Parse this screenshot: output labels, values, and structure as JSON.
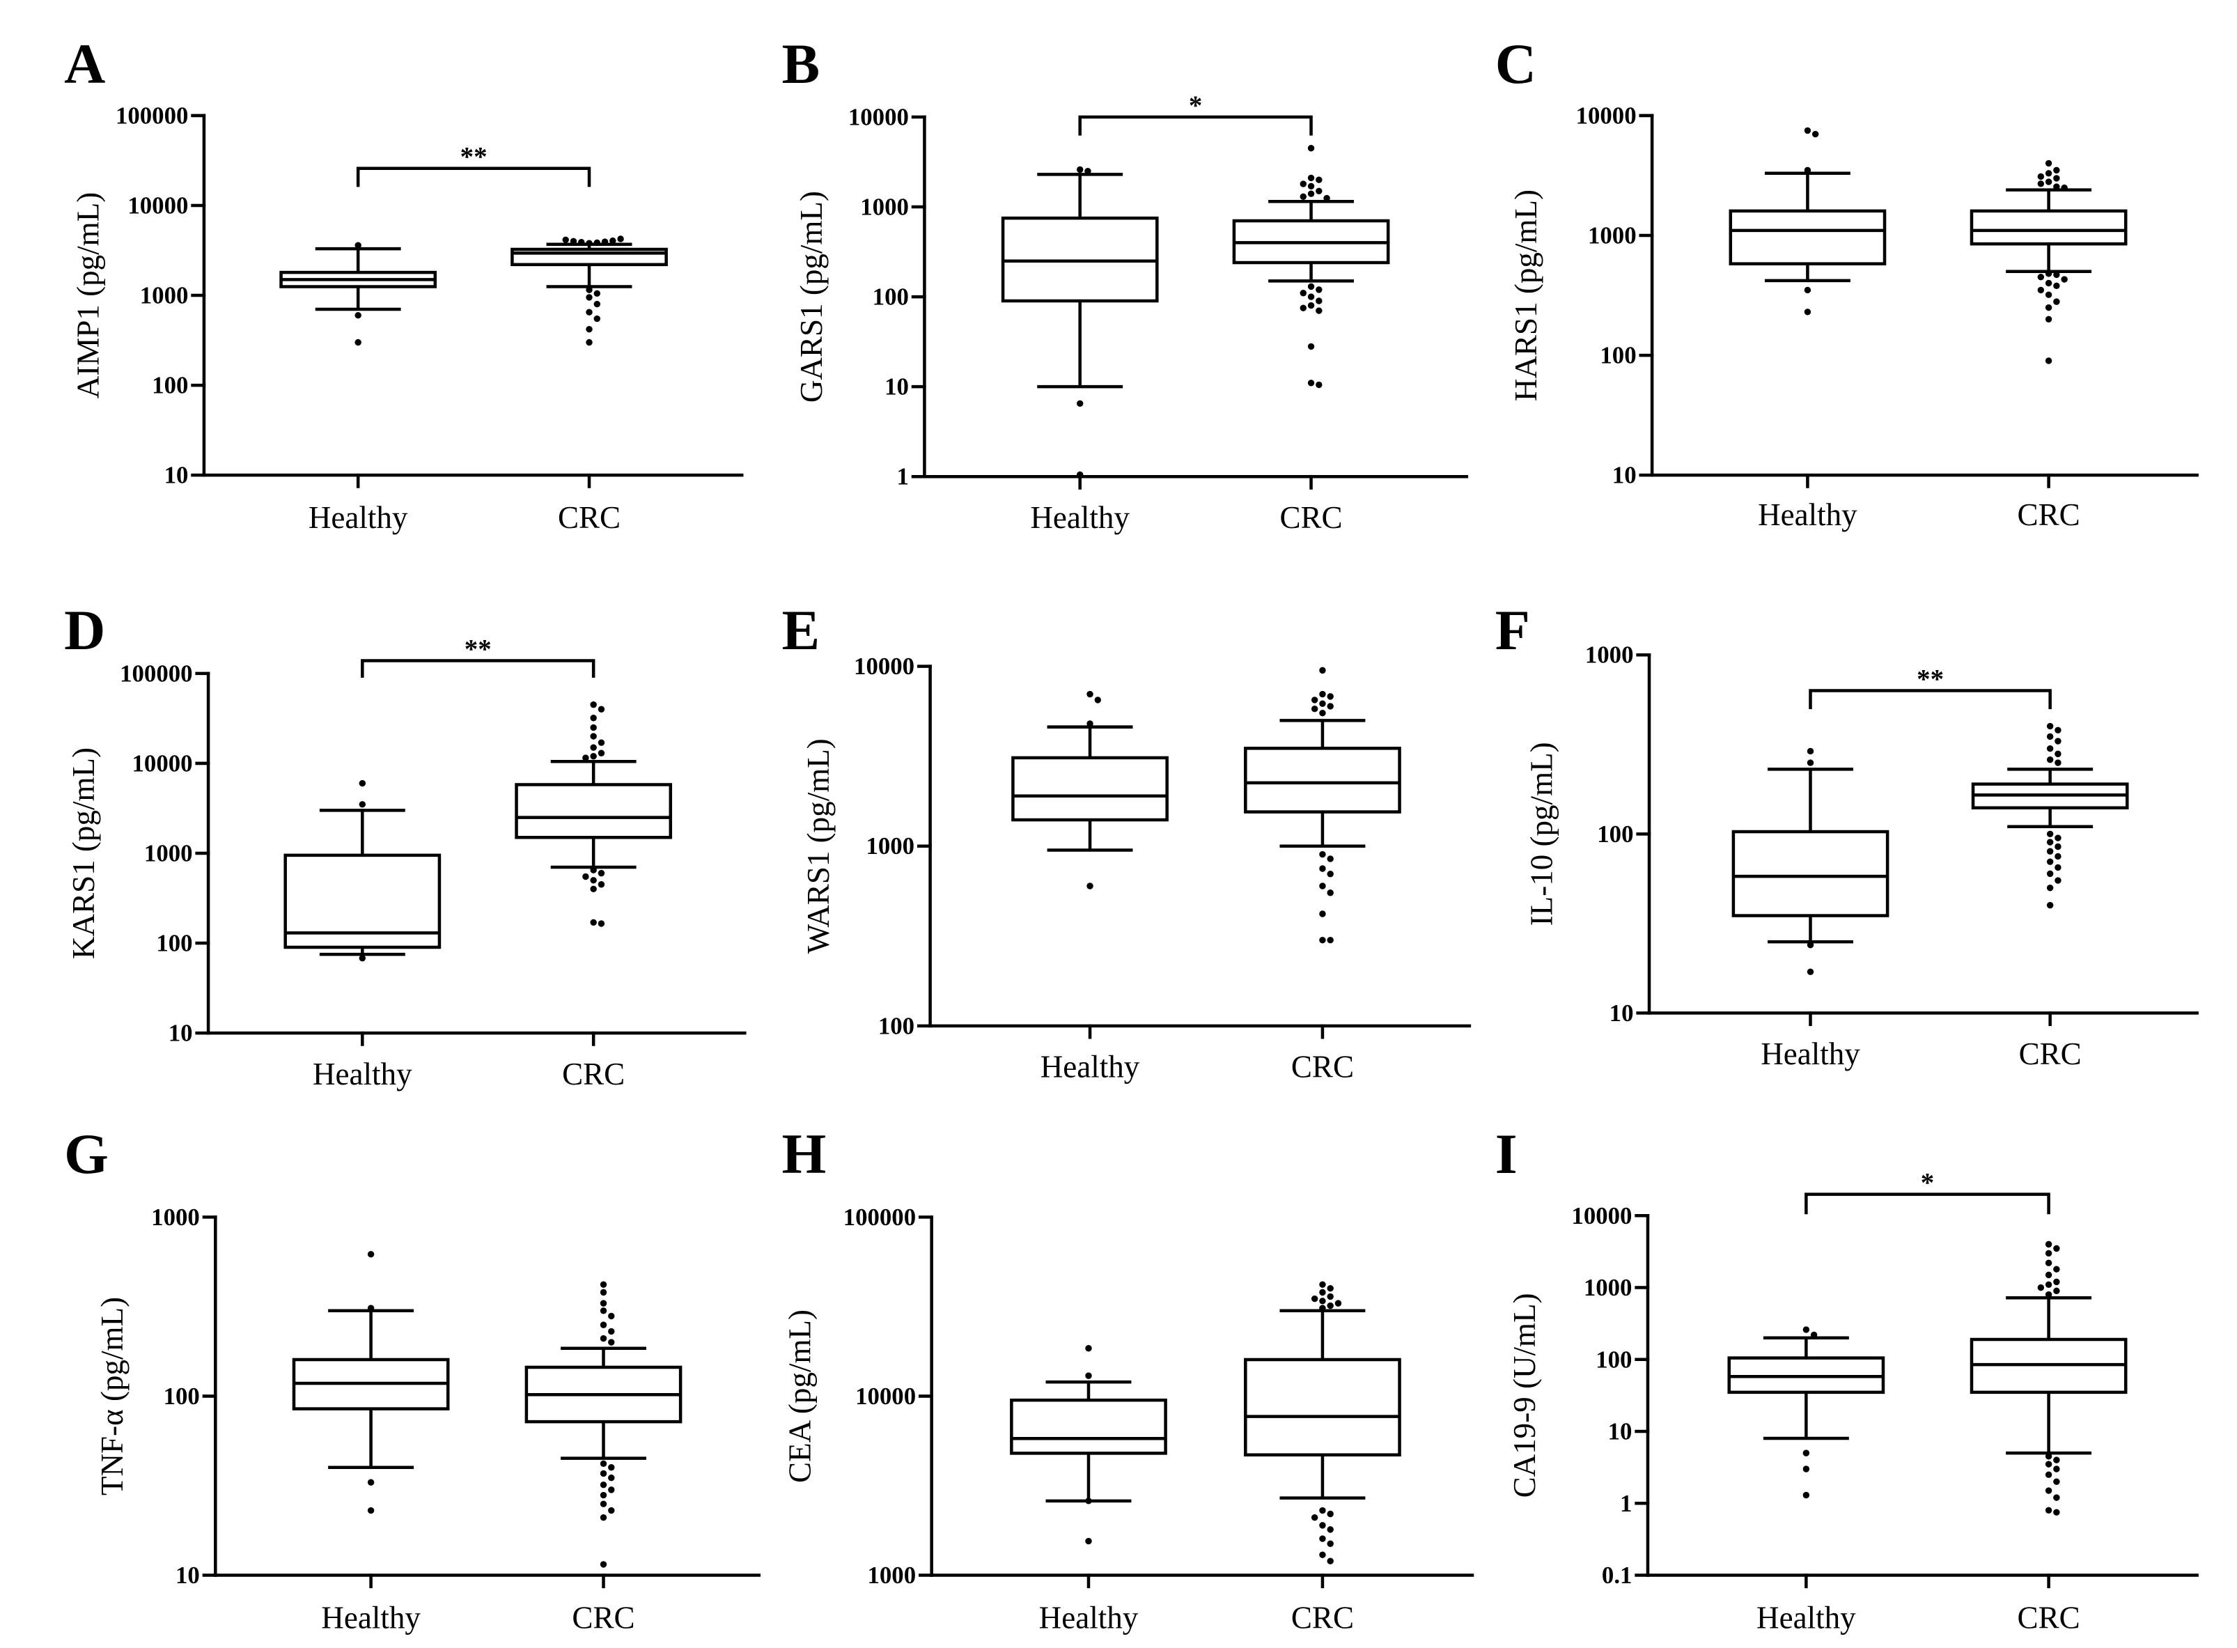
{
  "colors": {
    "ink": "#000000",
    "background": "#ffffff"
  },
  "chart_data": [
    {
      "type": "box",
      "panel": "A",
      "ylabel": "AIMP1 (pg/mL)",
      "log_scale": true,
      "ylim": [
        10,
        100000
      ],
      "yticks": [
        "10",
        "100",
        "1000",
        "10000",
        "100000"
      ],
      "categories": [
        "Healthy",
        "CRC"
      ],
      "significance": "**",
      "groups": [
        {
          "whisker_low": 700,
          "q1": 1250,
          "median": 1500,
          "q3": 1800,
          "whisker_high": 3300,
          "outliers": [
            3600,
            600,
            300
          ]
        },
        {
          "whisker_low": 1250,
          "q1": 2200,
          "median": 2950,
          "q3": 3250,
          "whisker_high": 3700,
          "outliers": [
            3800,
            3850,
            3900,
            3950,
            4000,
            4050,
            4150,
            4250,
            1150,
            1050,
            950,
            800,
            650,
            550,
            420,
            300
          ]
        }
      ]
    },
    {
      "type": "box",
      "panel": "B",
      "ylabel": "GARS1 (pg/mL)",
      "log_scale": true,
      "ylim": [
        1,
        10000
      ],
      "yticks": [
        "1",
        "10",
        "100",
        "1000",
        "10000"
      ],
      "categories": [
        "Healthy",
        "CRC"
      ],
      "significance": "*",
      "groups": [
        {
          "whisker_low": 10,
          "q1": 90,
          "median": 250,
          "q3": 750,
          "whisker_high": 2300,
          "outliers": [
            2600,
            2500,
            6.5,
            1.05
          ]
        },
        {
          "whisker_low": 150,
          "q1": 240,
          "median": 400,
          "q3": 700,
          "whisker_high": 1150,
          "outliers": [
            4500,
            2100,
            2000,
            1800,
            1700,
            1500,
            1400,
            1300,
            1250,
            130,
            120,
            110,
            100,
            90,
            80,
            75,
            70,
            28,
            11,
            10.5
          ]
        }
      ]
    },
    {
      "type": "box",
      "panel": "C",
      "ylabel": "HARS1 (pg/mL)",
      "log_scale": true,
      "ylim": [
        10,
        10000
      ],
      "yticks": [
        "10",
        "100",
        "1000",
        "10000"
      ],
      "categories": [
        "Healthy",
        "CRC"
      ],
      "groups": [
        {
          "whisker_low": 420,
          "q1": 580,
          "median": 1100,
          "q3": 1600,
          "whisker_high": 3300,
          "outliers": [
            7500,
            7000,
            3500,
            350,
            230
          ]
        },
        {
          "whisker_low": 500,
          "q1": 850,
          "median": 1100,
          "q3": 1600,
          "whisker_high": 2400,
          "outliers": [
            4000,
            3500,
            3300,
            3100,
            3000,
            2800,
            2700,
            2550,
            2500,
            480,
            470,
            450,
            430,
            400,
            380,
            350,
            320,
            280,
            250,
            200,
            90
          ]
        }
      ]
    },
    {
      "type": "box",
      "panel": "D",
      "ylabel": "KARS1 (pg/mL)",
      "log_scale": true,
      "ylim": [
        10,
        100000
      ],
      "yticks": [
        "10",
        "100",
        "1000",
        "10000",
        "100000"
      ],
      "categories": [
        "Healthy",
        "CRC"
      ],
      "significance": "**",
      "groups": [
        {
          "whisker_low": 75,
          "q1": 90,
          "median": 130,
          "q3": 950,
          "whisker_high": 3000,
          "outliers": [
            6000,
            3500,
            68
          ]
        },
        {
          "whisker_low": 700,
          "q1": 1500,
          "median": 2500,
          "q3": 5800,
          "whisker_high": 10500,
          "outliers": [
            45000,
            40000,
            32000,
            25000,
            20000,
            17000,
            15000,
            13000,
            12000,
            11500,
            650,
            600,
            550,
            500,
            450,
            400,
            170,
            165
          ]
        }
      ]
    },
    {
      "type": "box",
      "panel": "E",
      "ylabel": "WARS1 (pg/mL)",
      "log_scale": true,
      "ylim": [
        100,
        10000
      ],
      "yticks": [
        "100",
        "1000",
        "10000"
      ],
      "categories": [
        "Healthy",
        "CRC"
      ],
      "groups": [
        {
          "whisker_low": 950,
          "q1": 1400,
          "median": 1900,
          "q3": 3100,
          "whisker_high": 4600,
          "outliers": [
            7000,
            6500,
            4800,
            600
          ]
        },
        {
          "whisker_low": 1000,
          "q1": 1550,
          "median": 2250,
          "q3": 3500,
          "whisker_high": 5000,
          "outliers": [
            9500,
            7000,
            6800,
            6500,
            6200,
            6000,
            5800,
            5500,
            900,
            850,
            750,
            700,
            600,
            550,
            420,
            300,
            300
          ]
        }
      ]
    },
    {
      "type": "box",
      "panel": "F",
      "ylabel": "IL-10 (pg/mL)",
      "log_scale": true,
      "ylim": [
        10,
        1000
      ],
      "yticks": [
        "10",
        "100",
        "1000"
      ],
      "categories": [
        "Healthy",
        "CRC"
      ],
      "significance": "**",
      "groups": [
        {
          "whisker_low": 25,
          "q1": 35,
          "median": 58,
          "q3": 103,
          "whisker_high": 230,
          "outliers": [
            290,
            250,
            24,
            17
          ]
        },
        {
          "whisker_low": 110,
          "q1": 140,
          "median": 165,
          "q3": 190,
          "whisker_high": 230,
          "outliers": [
            400,
            380,
            350,
            330,
            300,
            280,
            260,
            250,
            100,
            95,
            90,
            85,
            80,
            75,
            70,
            65,
            60,
            55,
            50,
            40
          ]
        }
      ]
    },
    {
      "type": "box",
      "panel": "G",
      "ylabel": "TNF-α (pg/mL)",
      "log_scale": true,
      "ylim": [
        10,
        1000
      ],
      "yticks": [
        "10",
        "100",
        "1000"
      ],
      "categories": [
        "Healthy",
        "CRC"
      ],
      "groups": [
        {
          "whisker_low": 40,
          "q1": 85,
          "median": 118,
          "q3": 160,
          "whisker_high": 300,
          "outliers": [
            620,
            310,
            33,
            23
          ]
        },
        {
          "whisker_low": 45,
          "q1": 72,
          "median": 102,
          "q3": 145,
          "whisker_high": 185,
          "outliers": [
            420,
            380,
            330,
            300,
            280,
            250,
            230,
            210,
            200,
            42,
            40,
            37,
            35,
            32,
            30,
            28,
            25,
            23,
            21,
            11.5
          ]
        }
      ]
    },
    {
      "type": "box",
      "panel": "H",
      "ylabel": "CEA (pg/mL)",
      "log_scale": true,
      "ylim": [
        1000,
        100000
      ],
      "yticks": [
        "1000",
        "10000",
        "100000"
      ],
      "categories": [
        "Healthy",
        "CRC"
      ],
      "groups": [
        {
          "whisker_low": 2600,
          "q1": 4800,
          "median": 5800,
          "q3": 9500,
          "whisker_high": 12000,
          "outliers": [
            18500,
            13000,
            2600,
            1550
          ]
        },
        {
          "whisker_low": 2700,
          "q1": 4700,
          "median": 7700,
          "q3": 16000,
          "whisker_high": 30000,
          "outliers": [
            42000,
            40000,
            38000,
            36000,
            35000,
            34000,
            33000,
            32000,
            31000,
            2300,
            2200,
            2100,
            1900,
            1800,
            1600,
            1500,
            1300,
            1200
          ]
        }
      ]
    },
    {
      "type": "box",
      "panel": "I",
      "ylabel": "CA19-9 (U/mL)",
      "log_scale": true,
      "ylim": [
        0.1,
        10000
      ],
      "yticks": [
        "0.1",
        "1",
        "10",
        "100",
        "1000",
        "10000"
      ],
      "categories": [
        "Healthy",
        "CRC"
      ],
      "significance": "*",
      "groups": [
        {
          "whisker_low": 8,
          "q1": 35,
          "median": 58,
          "q3": 105,
          "whisker_high": 200,
          "outliers": [
            260,
            220,
            5,
            3,
            1.3
          ]
        },
        {
          "whisker_low": 5,
          "q1": 35,
          "median": 85,
          "q3": 190,
          "whisker_high": 720,
          "outliers": [
            4000,
            3500,
            3000,
            2200,
            1800,
            1500,
            1200,
            1100,
            1000,
            900,
            800,
            4.5,
            4,
            3.5,
            3,
            2.5,
            2,
            1.5,
            1.2,
            0.8,
            0.75
          ]
        }
      ]
    }
  ]
}
